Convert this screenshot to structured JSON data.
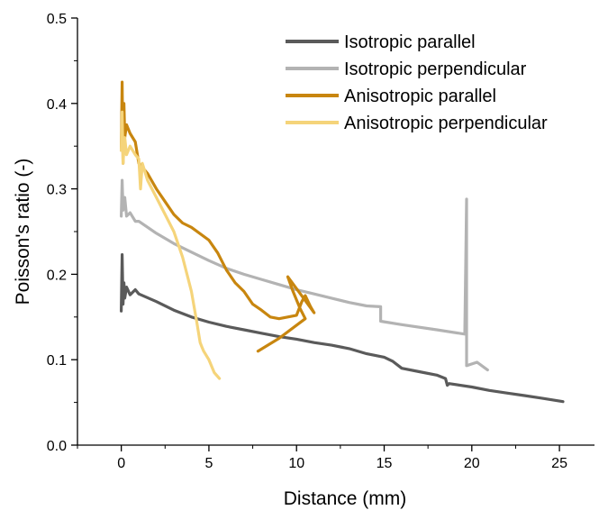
{
  "chart_data": {
    "type": "line",
    "title": "",
    "xlabel": "Distance (mm)",
    "ylabel": "Poisson's ratio (-)",
    "xlim": [
      -2.5,
      27
    ],
    "ylim": [
      0,
      0.5
    ],
    "xticks": [
      0,
      5,
      10,
      15,
      20,
      25
    ],
    "yticks": [
      0.0,
      0.1,
      0.2,
      0.3,
      0.4,
      0.5
    ],
    "xtick_labels": [
      "0",
      "5",
      "10",
      "15",
      "20",
      "25"
    ],
    "ytick_labels": [
      "0.0",
      "0.1",
      "0.2",
      "0.3",
      "0.4",
      "0.5"
    ],
    "grid": false,
    "legend_position": "top-right",
    "series": [
      {
        "name": "Isotropic parallel",
        "color": "#5a5a5a",
        "x": [
          0.0,
          0.05,
          0.1,
          0.15,
          0.2,
          0.3,
          0.5,
          0.8,
          1.0,
          2.0,
          3.0,
          4.0,
          5.0,
          6.0,
          7.0,
          8.0,
          9.0,
          10.0,
          11.0,
          12.0,
          13.0,
          14.0,
          15.0,
          15.5,
          16.0,
          17.0,
          18.0,
          18.5,
          18.6,
          18.7,
          20.0,
          21.0,
          22.0,
          23.0,
          24.0,
          25.2
        ],
        "y": [
          0.157,
          0.223,
          0.165,
          0.19,
          0.172,
          0.185,
          0.176,
          0.182,
          0.177,
          0.168,
          0.158,
          0.15,
          0.144,
          0.139,
          0.135,
          0.131,
          0.127,
          0.124,
          0.12,
          0.117,
          0.113,
          0.107,
          0.103,
          0.098,
          0.09,
          0.086,
          0.082,
          0.078,
          0.07,
          0.072,
          0.068,
          0.064,
          0.061,
          0.058,
          0.055,
          0.051
        ]
      },
      {
        "name": "Isotropic perpendicular",
        "color": "#b3b3b3",
        "x": [
          0.0,
          0.05,
          0.1,
          0.2,
          0.3,
          0.5,
          0.8,
          1.0,
          2.0,
          3.0,
          4.0,
          5.0,
          6.0,
          7.0,
          8.0,
          9.0,
          10.0,
          11.0,
          12.0,
          13.0,
          14.0,
          14.8,
          14.8,
          16.0,
          18.0,
          19.6,
          19.7,
          19.7,
          20.3,
          20.9
        ],
        "y": [
          0.268,
          0.31,
          0.275,
          0.29,
          0.268,
          0.272,
          0.262,
          0.262,
          0.248,
          0.236,
          0.226,
          0.216,
          0.207,
          0.2,
          0.194,
          0.188,
          0.182,
          0.177,
          0.172,
          0.167,
          0.163,
          0.162,
          0.145,
          0.141,
          0.135,
          0.13,
          0.288,
          0.093,
          0.097,
          0.088
        ]
      },
      {
        "name": "Anisotropic parallel",
        "color": "#c8860f",
        "x": [
          0.0,
          0.05,
          0.1,
          0.15,
          0.2,
          0.3,
          0.5,
          0.8,
          1.0,
          1.5,
          2.0,
          2.5,
          3.0,
          3.5,
          4.0,
          5.0,
          5.5,
          6.0,
          6.5,
          7.0,
          7.5,
          8.0,
          8.5,
          9.0,
          9.5,
          10.0,
          10.3,
          10.5,
          10.8,
          11.0,
          10.4,
          9.5,
          9.8,
          10.2,
          10.5,
          9.0,
          7.8
        ],
        "y": [
          0.345,
          0.425,
          0.33,
          0.4,
          0.36,
          0.375,
          0.365,
          0.355,
          0.33,
          0.318,
          0.3,
          0.285,
          0.27,
          0.26,
          0.255,
          0.24,
          0.225,
          0.205,
          0.19,
          0.18,
          0.165,
          0.158,
          0.15,
          0.148,
          0.15,
          0.152,
          0.168,
          0.175,
          0.162,
          0.155,
          0.172,
          0.197,
          0.18,
          0.16,
          0.148,
          0.125,
          0.11
        ]
      },
      {
        "name": "Anisotropic perpendicular",
        "color": "#f5d47a",
        "x": [
          0.0,
          0.05,
          0.1,
          0.2,
          0.3,
          0.5,
          0.8,
          1.0,
          1.1,
          1.2,
          1.5,
          2.0,
          2.5,
          3.0,
          3.5,
          4.0,
          4.3,
          4.5,
          4.6,
          4.7,
          5.0,
          5.3,
          5.6
        ],
        "y": [
          0.345,
          0.39,
          0.33,
          0.36,
          0.34,
          0.35,
          0.34,
          0.335,
          0.3,
          0.33,
          0.31,
          0.29,
          0.27,
          0.25,
          0.22,
          0.18,
          0.145,
          0.12,
          0.115,
          0.11,
          0.1,
          0.085,
          0.078
        ]
      }
    ]
  }
}
